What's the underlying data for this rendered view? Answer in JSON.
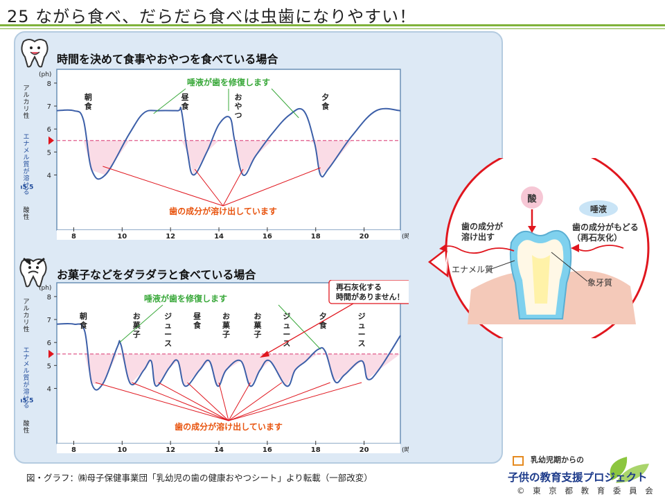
{
  "slide": {
    "number_title": "25 ながら食べ、だらだら食べは虫歯になりやすい！"
  },
  "chart_data": [
    {
      "type": "line",
      "title": "時間を決めて食事やおやつを食べている場合",
      "xlabel": "(時間)",
      "ylabel_top": "(ph)",
      "ylabel_alkaline": "アルカリ性",
      "ylabel_dissolve": "エナメル質が溶ける",
      "ylabel_threshold": "ph5.5",
      "ylabel_acid": "酸性",
      "x_ticks": [
        "8",
        "10",
        "12",
        "14",
        "16",
        "18",
        "20"
      ],
      "y_ticks": [
        "8",
        "7",
        "6",
        "5",
        "4"
      ],
      "xlim": [
        7.3,
        21.5
      ],
      "threshold": 5.5,
      "x": [
        7.3,
        8.0,
        8.4,
        8.75,
        9.3,
        10.3,
        10.9,
        11.5,
        12.3,
        12.45,
        12.7,
        12.95,
        13.5,
        14.0,
        14.45,
        14.65,
        15.0,
        15.5,
        16.2,
        16.9,
        17.5,
        17.95,
        18.2,
        18.55,
        19.5,
        20.5,
        21.5
      ],
      "y": [
        6.8,
        6.8,
        6.4,
        4.2,
        4.0,
        5.8,
        6.7,
        6.8,
        6.8,
        6.8,
        5.0,
        4.0,
        5.0,
        6.2,
        6.5,
        5.5,
        4.0,
        4.8,
        5.8,
        6.6,
        6.8,
        5.4,
        4.0,
        4.3,
        5.7,
        6.8,
        6.8
      ],
      "meal_labels": [
        "朝食",
        "昼食",
        "おやつ",
        "夕食"
      ],
      "annotation_saliva": "唾液が歯を修復します",
      "annotation_dissolve": "歯の成分が溶け出しています"
    },
    {
      "type": "line",
      "title": "お菓子などをダラダラと食べている場合",
      "xlabel": "(時間)",
      "ylabel_top": "(ph)",
      "ylabel_alkaline": "アルカリ性",
      "ylabel_dissolve": "エナメル質が溶ける",
      "ylabel_threshold": "ph5.5",
      "ylabel_acid": "酸性",
      "x_ticks": [
        "8",
        "10",
        "12",
        "14",
        "16",
        "18",
        "20"
      ],
      "y_ticks": [
        "8",
        "7",
        "6",
        "5",
        "4"
      ],
      "xlim": [
        7.3,
        21.5
      ],
      "threshold": 5.5,
      "x": [
        7.3,
        8.0,
        8.45,
        8.75,
        9.2,
        9.8,
        9.95,
        10.35,
        10.9,
        11.2,
        11.4,
        11.95,
        12.3,
        12.6,
        13.2,
        13.6,
        13.95,
        14.3,
        14.9,
        15.3,
        15.7,
        16.1,
        16.8,
        17.15,
        17.6,
        18.1,
        18.4,
        18.8,
        19.2,
        19.9,
        20.15,
        20.6,
        21.5
      ],
      "y": [
        6.8,
        6.8,
        6.5,
        4.2,
        4.2,
        5.8,
        5.9,
        4.2,
        4.8,
        5.2,
        4.1,
        4.9,
        5.2,
        4.1,
        4.8,
        5.2,
        4.1,
        4.8,
        5.2,
        4.1,
        4.8,
        5.2,
        4.1,
        4.8,
        5.2,
        5.7,
        5.6,
        4.3,
        4.6,
        5.2,
        4.4,
        4.8,
        6.3
      ],
      "meal_labels": [
        "朝食",
        "お菓子",
        "ジュース",
        "昼食",
        "お菓子",
        "お菓子",
        "ジュース",
        "夕食",
        "ジュース"
      ],
      "annotation_saliva": "唾液が歯を修復します",
      "annotation_dissolve": "歯の成分が溶け出しています",
      "callout": "再石灰化する\n時間がありません！"
    }
  ],
  "tooth_diagram": {
    "acid_label": "酸",
    "saliva_label": "唾液",
    "dissolve_label": "歯の成分が\n溶け出す",
    "remineralize_label": "歯の成分がもどる\n（再石灰化）",
    "enamel_label": "エナメル質",
    "dentin_label": "象牙質"
  },
  "footer": {
    "source": "図・グラフ：㈱母子保健事業団「乳幼児の歯の健康おやつシート」より転載（一部改変）",
    "logo_sub": "乳幼児期からの",
    "logo_main": "子供の教育支援プロジェクト",
    "logo_org": "© 東 京 都 教 育 委 員 会"
  },
  "colors": {
    "accent_green": "#7fb23a",
    "panel_blue": "#dde9f5",
    "curve_blue": "#3c5fa8",
    "threshold_pink": "#e05a8a",
    "saliva_green": "#39a83a",
    "dissolve_orange": "#e8540f",
    "arrow_red": "#e02a2a"
  }
}
